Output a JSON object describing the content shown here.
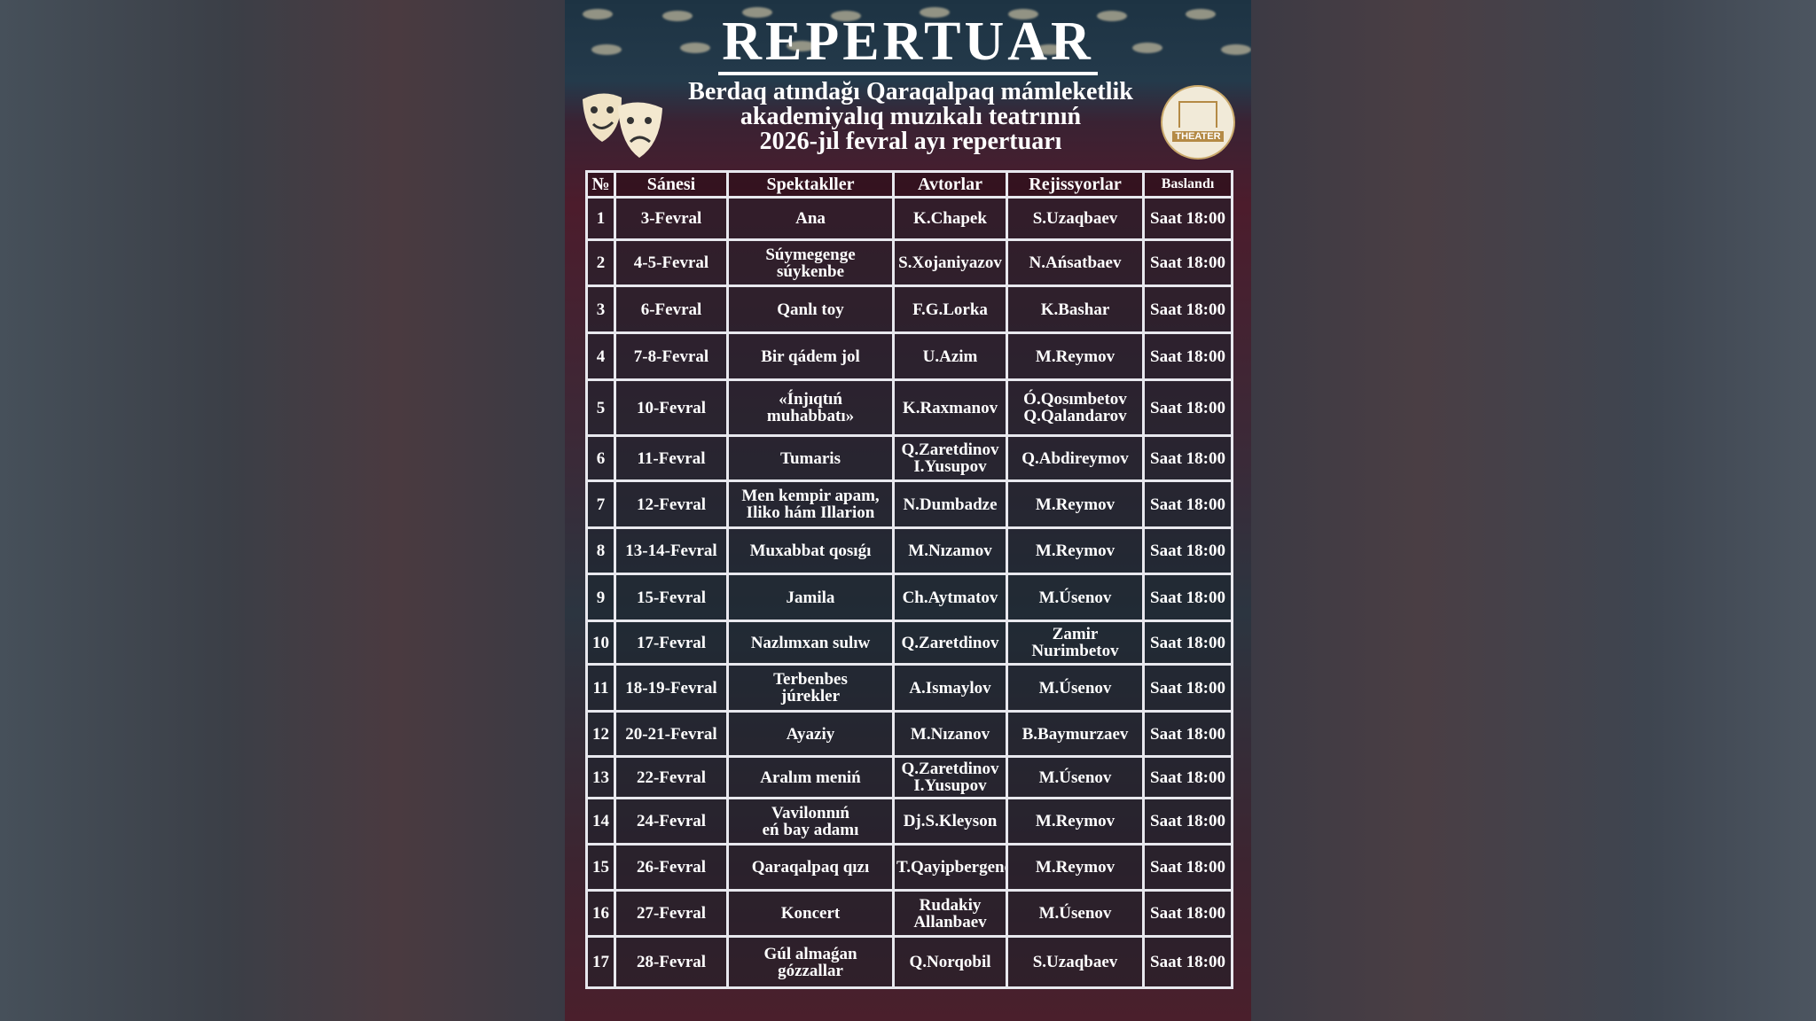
{
  "title": "REPERTUAR",
  "subtitle": [
    "Berdaq atındağı Qaraqalpaq mámleketlik",
    "akademiyalıq  muzıkalı teatrınıń",
    "2026-jıl fevral ayı repertuarı"
  ],
  "logo_text": "THEATER",
  "columns": [
    "№",
    "Sánesi",
    "Spektakller",
    "Avtorlar",
    "Rejissyorlar",
    "Baslandı"
  ],
  "rows": [
    [
      "1",
      "3-Fevral",
      "Ana",
      "K.Chapek",
      "S.Uzaqbaev",
      "Saat 18:00"
    ],
    [
      "2",
      "4-5-Fevral",
      "Súymegenge\nsúykenbe",
      "S.Xojaniyazov",
      "N.Ańsatbaev",
      "Saat 18:00"
    ],
    [
      "3",
      "6-Fevral",
      "Qanlı toy",
      "F.G.Lorka",
      "K.Bashar",
      "Saat 18:00"
    ],
    [
      "4",
      "7-8-Fevral",
      "Bir qádem jol",
      "U.Azim",
      "M.Reymov",
      "Saat 18:00"
    ],
    [
      "5",
      "10-Fevral",
      "«Ínjıqtıń\nmuhabbatı»",
      "K.Raxmanov",
      "Ó.Qosımbetov\nQ.Qalandarov",
      "Saat 18:00"
    ],
    [
      "6",
      "11-Fevral",
      "Tumaris",
      "Q.Zaretdinov\nI.Yusupov",
      "Q.Abdireymov",
      "Saat 18:00"
    ],
    [
      "7",
      "12-Fevral",
      "Men kempir apam,\nIliko hám Illarion",
      "N.Dumbadze",
      "M.Reymov",
      "Saat 18:00"
    ],
    [
      "8",
      "13-14-Fevral",
      "Muxabbat qosıǵı",
      "M.Nızamov",
      "M.Reymov",
      "Saat 18:00"
    ],
    [
      "9",
      "15-Fevral",
      "Jamila",
      "Ch.Aytmatov",
      "M.Úsenov",
      "Saat 18:00"
    ],
    [
      "10",
      "17-Fevral",
      "Nazlımxan sulıw",
      "Q.Zaretdinov",
      "Zamir Nurimbetov",
      "Saat 18:00"
    ],
    [
      "11",
      "18-19-Fevral",
      "Terbenbes\njúrekler",
      "A.Ismaylov",
      "M.Úsenov",
      "Saat 18:00"
    ],
    [
      "12",
      "20-21-Fevral",
      "Ayaziy",
      "M.Nızanov",
      "B.Baymurzaev",
      "Saat 18:00"
    ],
    [
      "13",
      "22-Fevral",
      "Aralım meniń",
      "Q.Zaretdinov\nI.Yusupov",
      "M.Úsenov",
      "Saat 18:00"
    ],
    [
      "14",
      "24-Fevral",
      "Vavilonnıń\neń bay adamı",
      "Dj.S.Kleyson",
      "M.Reymov",
      "Saat 18:00"
    ],
    [
      "15",
      "26-Fevral",
      "Qaraqalpaq qızı",
      "T.Qayipbergenov",
      "M.Reymov",
      "Saat 18:00"
    ],
    [
      "16",
      "27-Fevral",
      "Koncert",
      "Rudakiy\nAllanbaev",
      "M.Úsenov",
      "Saat 18:00"
    ],
    [
      "17",
      "28-Fevral",
      "Gúl almaǵan\ngózzallar",
      "Q.Norqobil",
      "S.Uzaqbaev",
      "Saat 18:00"
    ]
  ],
  "colors": {
    "header_bg": "#1d3343",
    "curtain": "#4c1c2c",
    "grid": "#e8e8ee",
    "text": "#ffffff"
  }
}
